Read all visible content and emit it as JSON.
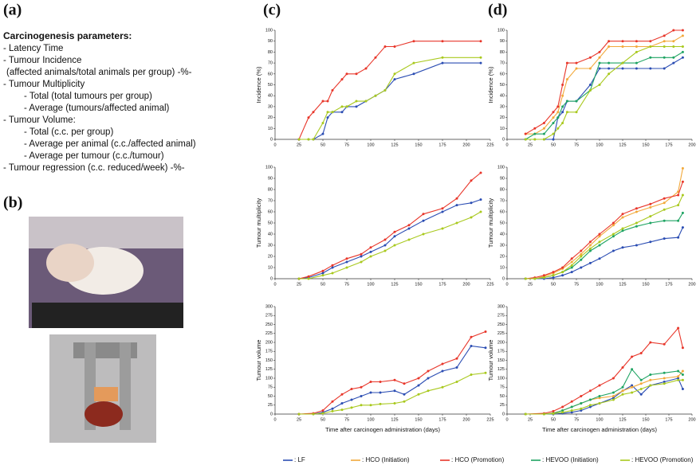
{
  "panel_a": {
    "label": "(a)",
    "heading": "Carcinogenesis parameters:",
    "items": [
      "- Latency Time",
      "- Tumour Incidence",
      "(affected animals/total animals per group) -%-",
      "- Tumour Multiplicity",
      "- Total (total tumours per group)",
      "- Average (tumours/affected animal)",
      "- Tumour Volume:",
      "- Total (c.c. per group)",
      "- Average per animal (c.c./affected animal)",
      "- Average per tumour (c.c./tumour)",
      "- Tumour regression (c.c. reduced/week) -%-"
    ]
  },
  "panel_b": {
    "label": "(b)"
  },
  "panel_c": {
    "label": "(c)"
  },
  "panel_d": {
    "label": "(d)"
  },
  "chart_data": [
    {
      "type": "line",
      "y_label": "Incidence (%)",
      "xlim": [
        0,
        225
      ],
      "xticks": [
        0,
        25,
        50,
        75,
        100,
        125,
        150,
        175,
        200,
        225
      ],
      "ylim": [
        0,
        100
      ],
      "yticks": [
        0,
        10,
        20,
        30,
        40,
        50,
        60,
        70,
        80,
        90,
        100
      ],
      "x": [
        25,
        35,
        40,
        50,
        55,
        60,
        70,
        75,
        85,
        95,
        105,
        115,
        125,
        145,
        175,
        215
      ],
      "series": [
        {
          "name": ": LF",
          "color": "#2b4db3",
          "values": [
            0,
            0,
            0,
            5,
            20,
            25,
            25,
            30,
            30,
            35,
            40,
            45,
            55,
            60,
            70,
            70
          ]
        },
        {
          "name": ": HCO (Promotion)",
          "color": "#e8362a",
          "values": [
            0,
            20,
            25,
            35,
            35,
            45,
            55,
            60,
            60,
            65,
            75,
            85,
            85,
            90,
            90,
            90
          ]
        },
        {
          "name": ": HEVOO (Promotion)",
          "color": "#a9c91e",
          "values": [
            0,
            0,
            0,
            15,
            25,
            25,
            30,
            30,
            35,
            35,
            40,
            45,
            60,
            70,
            75,
            75
          ]
        }
      ]
    },
    {
      "type": "line",
      "y_label": "Tumour multiplicity",
      "xlim": [
        0,
        225
      ],
      "xticks": [
        0,
        25,
        50,
        75,
        100,
        125,
        150,
        175,
        200,
        225
      ],
      "ylim": [
        0,
        100
      ],
      "yticks": [
        0,
        10,
        20,
        30,
        40,
        50,
        60,
        70,
        80,
        90,
        100
      ],
      "x": [
        25,
        35,
        50,
        60,
        75,
        90,
        100,
        115,
        125,
        140,
        155,
        175,
        190,
        205,
        215
      ],
      "series": [
        {
          "name": ": LF",
          "color": "#2b4db3",
          "values": [
            0,
            1,
            5,
            10,
            15,
            20,
            24,
            30,
            38,
            45,
            52,
            60,
            66,
            68,
            71
          ]
        },
        {
          "name": ": HCO (Promotion)",
          "color": "#e8362a",
          "values": [
            0,
            2,
            7,
            12,
            18,
            22,
            28,
            35,
            42,
            48,
            58,
            63,
            72,
            88,
            95
          ]
        },
        {
          "name": ": HEVOO (Promotion)",
          "color": "#a9c91e",
          "values": [
            0,
            0,
            3,
            5,
            10,
            15,
            20,
            25,
            30,
            35,
            40,
            45,
            50,
            55,
            60
          ]
        }
      ]
    },
    {
      "type": "line",
      "y_label": "Tumour volume",
      "x_label": "Time after carcinogen administration (days)",
      "xlim": [
        0,
        225
      ],
      "xticks": [
        0,
        25,
        50,
        75,
        100,
        125,
        150,
        175,
        200,
        225
      ],
      "ylim": [
        0,
        300
      ],
      "yticks": [
        0,
        25,
        50,
        75,
        100,
        125,
        150,
        175,
        200,
        225,
        250,
        275,
        300
      ],
      "x": [
        25,
        40,
        50,
        60,
        70,
        80,
        90,
        100,
        110,
        125,
        135,
        150,
        160,
        175,
        190,
        205,
        220
      ],
      "series": [
        {
          "name": ": LF",
          "color": "#2b4db3",
          "values": [
            0,
            0,
            5,
            15,
            30,
            40,
            50,
            60,
            60,
            65,
            55,
            80,
            100,
            120,
            130,
            190,
            185
          ]
        },
        {
          "name": ": HCO (Promotion)",
          "color": "#e8362a",
          "values": [
            0,
            2,
            10,
            35,
            55,
            70,
            75,
            90,
            90,
            95,
            85,
            100,
            120,
            140,
            155,
            215,
            230
          ]
        },
        {
          "name": ": HEVOO (Promotion)",
          "color": "#a9c91e",
          "values": [
            0,
            0,
            2,
            8,
            12,
            18,
            25,
            25,
            28,
            30,
            35,
            55,
            65,
            75,
            90,
            110,
            115
          ]
        }
      ]
    },
    {
      "type": "line",
      "y_label": "Incidence (%)",
      "xlim": [
        0,
        200
      ],
      "xticks": [
        0,
        25,
        50,
        75,
        100,
        125,
        150,
        175,
        200
      ],
      "ylim": [
        0,
        100
      ],
      "yticks": [
        0,
        10,
        20,
        30,
        40,
        50,
        60,
        70,
        80,
        90,
        100
      ],
      "x": [
        20,
        30,
        40,
        50,
        55,
        60,
        65,
        75,
        90,
        100,
        110,
        125,
        140,
        155,
        170,
        180,
        190
      ],
      "series": [
        {
          "name": ": LF",
          "color": "#2b4db3",
          "values": [
            0,
            0,
            0,
            0,
            20,
            25,
            35,
            35,
            50,
            65,
            65,
            65,
            65,
            65,
            65,
            70,
            75
          ]
        },
        {
          "name": ": HCO (Initiation)",
          "color": "#f2a93b",
          "values": [
            5,
            5,
            10,
            20,
            25,
            40,
            55,
            65,
            65,
            75,
            85,
            85,
            85,
            85,
            90,
            90,
            95
          ]
        },
        {
          "name": ": HCO (Promotion)",
          "color": "#e8362a",
          "values": [
            5,
            10,
            15,
            25,
            30,
            50,
            70,
            70,
            75,
            80,
            90,
            90,
            90,
            90,
            95,
            100,
            100
          ]
        },
        {
          "name": ": HEVOO (Initiation)",
          "color": "#1fa463",
          "values": [
            0,
            5,
            5,
            15,
            20,
            30,
            35,
            35,
            45,
            70,
            70,
            70,
            70,
            75,
            75,
            75,
            80
          ]
        },
        {
          "name": ": HEVOO (Promotion)",
          "color": "#a9c91e",
          "values": [
            0,
            0,
            0,
            5,
            10,
            15,
            25,
            25,
            45,
            50,
            60,
            70,
            80,
            85,
            85,
            85,
            85
          ]
        }
      ]
    },
    {
      "type": "line",
      "y_label": "Tumour multiplicity",
      "xlim": [
        0,
        200
      ],
      "xticks": [
        0,
        25,
        50,
        75,
        100,
        125,
        150,
        175,
        200
      ],
      "ylim": [
        0,
        100
      ],
      "yticks": [
        0,
        10,
        20,
        30,
        40,
        50,
        60,
        70,
        80,
        90,
        100
      ],
      "x": [
        20,
        30,
        40,
        50,
        60,
        70,
        80,
        90,
        100,
        115,
        125,
        140,
        155,
        170,
        185,
        190
      ],
      "series": [
        {
          "name": ": LF",
          "color": "#2b4db3",
          "values": [
            0,
            0,
            0,
            1,
            3,
            6,
            10,
            14,
            18,
            25,
            28,
            30,
            33,
            36,
            37,
            46
          ]
        },
        {
          "name": ": HCO (Initiation)",
          "color": "#f2a93b",
          "values": [
            0,
            0,
            2,
            5,
            9,
            15,
            22,
            30,
            38,
            48,
            55,
            60,
            64,
            68,
            78,
            99
          ]
        },
        {
          "name": ": HCO (Promotion)",
          "color": "#e8362a",
          "values": [
            0,
            1,
            3,
            6,
            10,
            18,
            25,
            33,
            40,
            50,
            58,
            63,
            67,
            72,
            75,
            87
          ]
        },
        {
          "name": ": HEVOO (Initiation)",
          "color": "#1fa463",
          "values": [
            0,
            0,
            1,
            3,
            6,
            10,
            17,
            25,
            30,
            38,
            43,
            47,
            50,
            52,
            52,
            59
          ]
        },
        {
          "name": ": HEVOO (Promotion)",
          "color": "#a9c91e",
          "values": [
            0,
            0,
            1,
            3,
            6,
            12,
            20,
            27,
            33,
            40,
            45,
            50,
            56,
            62,
            66,
            75
          ]
        }
      ]
    },
    {
      "type": "line",
      "y_label": "Tumour volume",
      "x_label": "Time after carcinogen administration (days)",
      "xlim": [
        0,
        200
      ],
      "xticks": [
        0,
        25,
        50,
        75,
        100,
        125,
        150,
        175,
        200
      ],
      "ylim": [
        0,
        300
      ],
      "yticks": [
        0,
        25,
        50,
        75,
        100,
        125,
        150,
        175,
        200,
        225,
        250,
        275,
        300
      ],
      "x": [
        20,
        40,
        50,
        60,
        70,
        80,
        90,
        100,
        115,
        125,
        135,
        145,
        155,
        170,
        185,
        190
      ],
      "series": [
        {
          "name": ": LF",
          "color": "#2b4db3",
          "values": [
            0,
            0,
            0,
            2,
            5,
            10,
            20,
            30,
            45,
            65,
            80,
            55,
            80,
            90,
            100,
            70
          ]
        },
        {
          "name": ": HCO (Initiation)",
          "color": "#f2a93b",
          "values": [
            0,
            0,
            3,
            10,
            20,
            30,
            40,
            45,
            50,
            65,
            75,
            85,
            95,
            100,
            105,
            120
          ]
        },
        {
          "name": ": HCO (Promotion)",
          "color": "#e8362a",
          "values": [
            0,
            2,
            8,
            20,
            35,
            50,
            65,
            80,
            100,
            130,
            160,
            170,
            200,
            195,
            240,
            185
          ]
        },
        {
          "name": ": HEVOO (Initiation)",
          "color": "#1fa463",
          "values": [
            0,
            0,
            2,
            10,
            20,
            30,
            40,
            50,
            60,
            75,
            125,
            95,
            110,
            115,
            120,
            110
          ]
        },
        {
          "name": ": HEVOO (Promotion)",
          "color": "#a9c91e",
          "values": [
            0,
            0,
            1,
            5,
            10,
            15,
            25,
            30,
            40,
            55,
            60,
            70,
            80,
            85,
            95,
            95
          ]
        }
      ]
    }
  ]
}
